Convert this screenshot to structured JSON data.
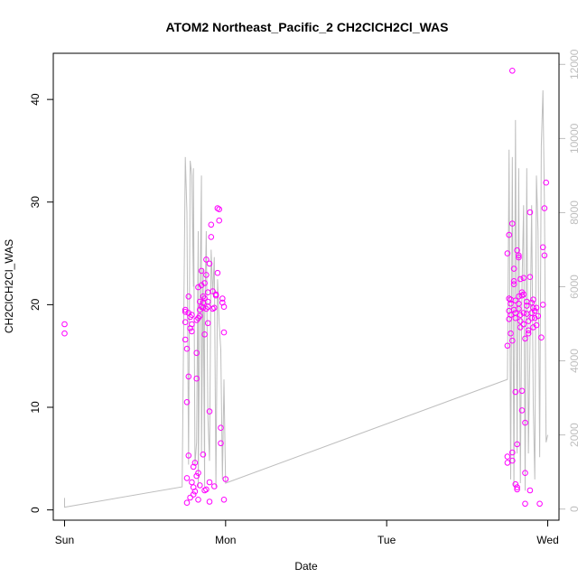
{
  "chart_data": {
    "type": "scatter",
    "title": "ATOM2 Northeast_Pacific_2 CH2ClCH2Cl_WAS",
    "xlabel": "Date",
    "ylabel": "CH2ClCH2Cl_WAS",
    "x_tick_labels": [
      "Sun",
      "Mon",
      "Tue",
      "Wed"
    ],
    "xlim_days": [
      -0.07,
      3.07
    ],
    "ylim": [
      -1.0,
      44.5
    ],
    "y_ticks": [
      0,
      10,
      20,
      30,
      40
    ],
    "y2lim": [
      -300,
      12300
    ],
    "y2_ticks": [
      0,
      2000,
      4000,
      6000,
      8000,
      10000,
      12000
    ],
    "grid": false,
    "colors": {
      "points": "#ff00ff",
      "secondary_line": "#bebebe",
      "right_axis": "#bebebe",
      "frame": "#000000"
    },
    "series": [
      {
        "role": "points",
        "axis": "left",
        "x_days": [
          0.0,
          0.0,
          0.75,
          0.75,
          0.75,
          0.75,
          0.76,
          0.76,
          0.76,
          0.76,
          0.77,
          0.77,
          0.77,
          0.77,
          0.78,
          0.78,
          0.78,
          0.79,
          0.79,
          0.79,
          0.79,
          0.8,
          0.8,
          0.8,
          0.81,
          0.81,
          0.82,
          0.82,
          0.82,
          0.82,
          0.83,
          0.83,
          0.83,
          0.83,
          0.84,
          0.84,
          0.84,
          0.84,
          0.85,
          0.85,
          0.85,
          0.86,
          0.86,
          0.86,
          0.86,
          0.87,
          0.87,
          0.87,
          0.87,
          0.88,
          0.88,
          0.88,
          0.88,
          0.89,
          0.89,
          0.89,
          0.89,
          0.9,
          0.9,
          0.9,
          0.9,
          0.91,
          0.91,
          0.92,
          0.92,
          0.93,
          0.93,
          0.94,
          0.94,
          0.95,
          0.95,
          0.96,
          0.96,
          0.97,
          0.97,
          0.98,
          0.98,
          0.99,
          0.99,
          0.99,
          1.0,
          2.75,
          2.75,
          2.75,
          2.75,
          2.76,
          2.76,
          2.76,
          2.76,
          2.77,
          2.77,
          2.77,
          2.77,
          2.78,
          2.78,
          2.78,
          2.78,
          2.78,
          2.79,
          2.79,
          2.79,
          2.79,
          2.8,
          2.8,
          2.8,
          2.8,
          2.8,
          2.81,
          2.81,
          2.81,
          2.81,
          2.82,
          2.82,
          2.82,
          2.82,
          2.82,
          2.83,
          2.83,
          2.83,
          2.83,
          2.84,
          2.84,
          2.84,
          2.84,
          2.85,
          2.85,
          2.85,
          2.85,
          2.86,
          2.86,
          2.86,
          2.86,
          2.87,
          2.87,
          2.87,
          2.88,
          2.88,
          2.88,
          2.89,
          2.89,
          2.89,
          2.9,
          2.9,
          2.9,
          2.91,
          2.91,
          2.91,
          2.92,
          2.92,
          2.93,
          2.93,
          2.94,
          2.95,
          2.96,
          2.97,
          2.97,
          2.98,
          2.98,
          2.99
        ],
        "y": [
          18.1,
          17.2,
          19.5,
          19.3,
          18.3,
          16.6,
          15.7,
          10.5,
          3.1,
          0.7,
          20.8,
          19.2,
          13.0,
          5.3,
          1.2,
          18.8,
          17.7,
          19.0,
          18.1,
          17.4,
          2.7,
          4.2,
          1.5,
          2.2,
          1.8,
          4.6,
          3.3,
          12.8,
          15.3,
          18.5,
          21.7,
          18.7,
          3.6,
          1.0,
          19.5,
          20.3,
          18.9,
          2.4,
          21.9,
          23.3,
          19.8,
          20.8,
          20.2,
          19.7,
          5.4,
          1.9,
          22.1,
          20.6,
          17.1,
          24.4,
          22.9,
          19.6,
          2.0,
          21.2,
          20.3,
          19.8,
          18.2,
          9.6,
          0.8,
          2.7,
          24.0,
          26.6,
          27.8,
          21.3,
          19.6,
          2.3,
          19.7,
          20.9,
          21.0,
          23.1,
          29.4,
          28.2,
          29.3,
          8.0,
          6.5,
          20.6,
          20.2,
          19.8,
          17.3,
          1.0,
          3.0,
          25.0,
          16.0,
          5.2,
          4.6,
          26.8,
          20.6,
          19.4,
          18.6,
          20.5,
          20.1,
          19.0,
          17.2,
          16.5,
          5.6,
          4.8,
          42.8,
          27.9,
          23.5,
          22.3,
          22.0,
          19.5,
          20.4,
          19.2,
          18.7,
          11.5,
          2.5,
          2.2,
          6.4,
          2.0,
          25.3,
          24.8,
          24.6,
          20.8,
          20.1,
          19.6,
          19.0,
          18.4,
          17.8,
          22.5,
          21.2,
          20.9,
          11.6,
          9.7,
          22.6,
          21.0,
          19.2,
          18.1,
          16.7,
          8.5,
          3.6,
          0.6,
          20.3,
          19.9,
          19.1,
          18.4,
          17.5,
          17.2,
          1.9,
          29.0,
          22.7,
          20.2,
          19.2,
          18.7,
          17.8,
          20.5,
          19.7,
          19.4,
          18.7,
          18.0,
          19.7,
          18.9,
          0.6,
          16.8,
          20.0,
          25.6,
          24.8,
          29.4,
          31.9
        ]
      },
      {
        "role": "line",
        "axis": "right",
        "x_days": [
          0.0,
          0.0,
          0.73,
          0.75,
          0.76,
          0.77,
          0.78,
          0.79,
          0.8,
          0.8,
          0.81,
          0.82,
          0.83,
          0.83,
          0.84,
          0.85,
          0.85,
          0.86,
          0.87,
          0.87,
          0.88,
          0.89,
          0.9,
          0.91,
          0.92,
          0.93,
          0.94,
          0.95,
          0.96,
          0.97,
          0.98,
          0.99,
          1.0,
          2.75,
          2.76,
          2.77,
          2.78,
          2.79,
          2.8,
          2.81,
          2.82,
          2.83,
          2.84,
          2.85,
          2.86,
          2.87,
          2.88,
          2.89,
          2.9,
          2.91,
          2.92,
          2.93,
          2.94,
          2.95,
          2.96,
          2.97,
          2.98,
          2.99,
          3.0
        ],
        "y2": [
          300,
          50,
          600,
          9500,
          8000,
          1200,
          9400,
          9000,
          6000,
          9200,
          1200,
          1800,
          7500,
          600,
          5500,
          9000,
          1500,
          6500,
          600,
          5000,
          7500,
          2500,
          1300,
          7000,
          5800,
          6800,
          600,
          6200,
          5000,
          4300,
          800,
          3500,
          700,
          3500,
          9700,
          800,
          9500,
          600,
          10500,
          1500,
          9200,
          700,
          6000,
          8200,
          500,
          9200,
          1500,
          4500,
          8200,
          2800,
          800,
          9000,
          7500,
          1400,
          9800,
          11300,
          8200,
          1800,
          2000
        ]
      }
    ]
  }
}
